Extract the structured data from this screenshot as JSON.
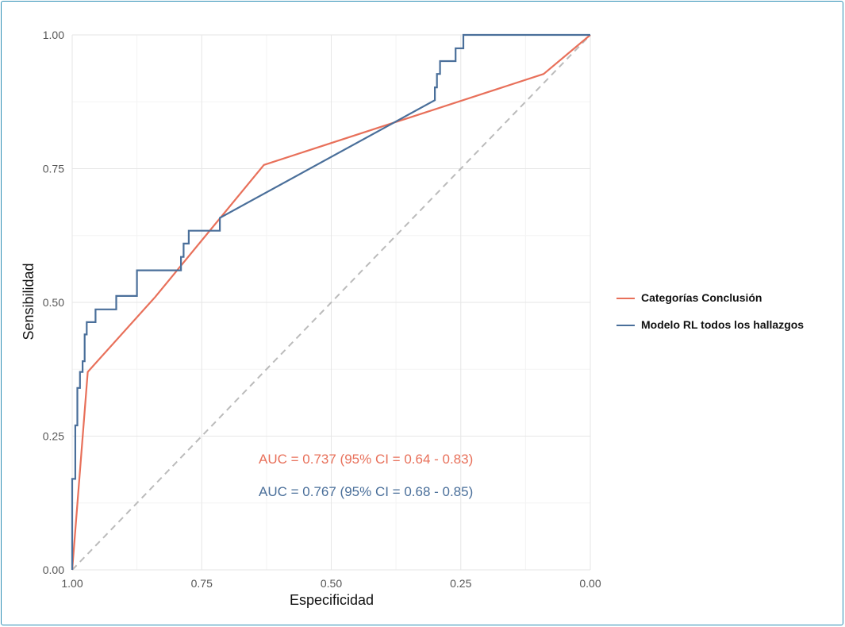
{
  "chart_data": {
    "type": "line",
    "title": "",
    "xlabel": "Especificidad",
    "ylabel": "Sensibilidad",
    "x_reversed": true,
    "xlim": [
      1.0,
      0.0
    ],
    "ylim": [
      0.0,
      1.0
    ],
    "x_ticks": [
      "1.00",
      "0.75",
      "0.50",
      "0.25",
      "0.00"
    ],
    "y_ticks": [
      "0.00",
      "0.25",
      "0.50",
      "0.75",
      "1.00"
    ],
    "grid": true,
    "legend_position": "right",
    "reference_line": {
      "style": "dashed",
      "color": "#bbbbbb",
      "points": [
        [
          1.0,
          0.0
        ],
        [
          0.0,
          1.0
        ]
      ]
    },
    "series": [
      {
        "name": "Categorías Conclusión",
        "color": "#e8705a",
        "auc_label": "AUC = 0.737 (95% CI = 0.64 - 0.83)",
        "points": [
          [
            1.0,
            0.0
          ],
          [
            0.97,
            0.37
          ],
          [
            0.84,
            0.51
          ],
          [
            0.63,
            0.757
          ],
          [
            0.09,
            0.927
          ],
          [
            0.0,
            1.0
          ]
        ]
      },
      {
        "name": "Modelo RL todos los hallazgos",
        "color": "#4a6f9a",
        "auc_label": "AUC = 0.767 (95% CI = 0.68 - 0.85)",
        "points": [
          [
            1.0,
            0.0
          ],
          [
            1.0,
            0.17
          ],
          [
            0.994,
            0.17
          ],
          [
            0.994,
            0.27
          ],
          [
            0.99,
            0.27
          ],
          [
            0.99,
            0.34
          ],
          [
            0.985,
            0.34
          ],
          [
            0.985,
            0.37
          ],
          [
            0.98,
            0.37
          ],
          [
            0.98,
            0.39
          ],
          [
            0.976,
            0.39
          ],
          [
            0.976,
            0.44
          ],
          [
            0.972,
            0.44
          ],
          [
            0.972,
            0.463
          ],
          [
            0.955,
            0.463
          ],
          [
            0.955,
            0.487
          ],
          [
            0.915,
            0.487
          ],
          [
            0.915,
            0.512
          ],
          [
            0.875,
            0.512
          ],
          [
            0.875,
            0.56
          ],
          [
            0.79,
            0.56
          ],
          [
            0.79,
            0.585
          ],
          [
            0.785,
            0.585
          ],
          [
            0.785,
            0.61
          ],
          [
            0.775,
            0.61
          ],
          [
            0.775,
            0.634
          ],
          [
            0.715,
            0.634
          ],
          [
            0.715,
            0.658
          ],
          [
            0.3,
            0.878
          ],
          [
            0.3,
            0.902
          ],
          [
            0.296,
            0.902
          ],
          [
            0.296,
            0.927
          ],
          [
            0.29,
            0.927
          ],
          [
            0.29,
            0.951
          ],
          [
            0.26,
            0.951
          ],
          [
            0.26,
            0.975
          ],
          [
            0.245,
            0.975
          ],
          [
            0.245,
            1.0
          ],
          [
            0.0,
            1.0
          ]
        ]
      }
    ]
  }
}
